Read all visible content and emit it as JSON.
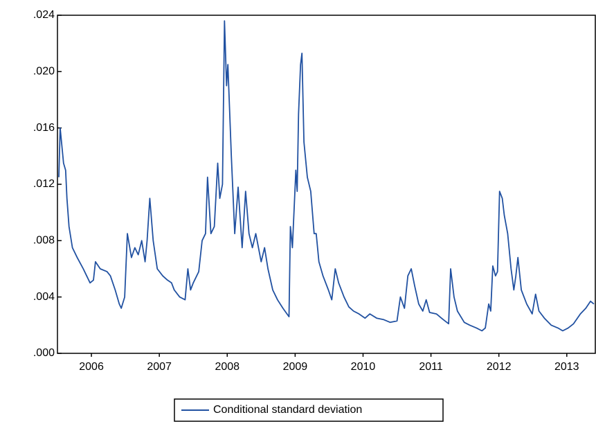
{
  "chart_data": {
    "type": "line",
    "x": [
      2006.02,
      2006.04,
      2006.09,
      2006.12,
      2006.14,
      2006.17,
      2006.22,
      2006.29,
      2006.38,
      2006.43,
      2006.48,
      2006.53,
      2006.56,
      2006.63,
      2006.73,
      2006.78,
      2006.85,
      2006.91,
      2006.94,
      2006.99,
      2007.03,
      2007.09,
      2007.14,
      2007.19,
      2007.24,
      2007.29,
      2007.32,
      2007.36,
      2007.41,
      2007.47,
      2007.55,
      2007.62,
      2007.68,
      2007.72,
      2007.8,
      2007.88,
      2007.92,
      2007.96,
      2008.0,
      2008.08,
      2008.13,
      2008.18,
      2008.21,
      2008.26,
      2008.31,
      2008.36,
      2008.39,
      2008.43,
      2008.46,
      2008.49,
      2008.51,
      2008.56,
      2008.61,
      2008.66,
      2008.72,
      2008.77,
      2008.82,
      2008.87,
      2008.92,
      2009.0,
      2009.05,
      2009.1,
      2009.17,
      2009.24,
      2009.32,
      2009.38,
      2009.41,
      2009.43,
      2009.46,
      2009.51,
      2009.53,
      2009.55,
      2009.58,
      2009.6,
      2009.63,
      2009.68,
      2009.73,
      2009.78,
      2009.81,
      2009.85,
      2009.91,
      2009.99,
      2010.04,
      2010.09,
      2010.14,
      2010.22,
      2010.29,
      2010.36,
      2010.44,
      2010.53,
      2010.6,
      2010.7,
      2010.8,
      2010.9,
      2011.0,
      2011.05,
      2011.11,
      2011.16,
      2011.21,
      2011.26,
      2011.32,
      2011.38,
      2011.43,
      2011.48,
      2011.58,
      2011.68,
      2011.76,
      2011.79,
      2011.84,
      2011.89,
      2011.99,
      2012.07,
      2012.17,
      2012.25,
      2012.3,
      2012.35,
      2012.38,
      2012.41,
      2012.45,
      2012.48,
      2012.51,
      2012.55,
      2012.58,
      2012.63,
      2012.68,
      2012.72,
      2012.75,
      2012.78,
      2012.83,
      2012.91,
      2012.99,
      2013.04,
      2013.09,
      2013.17,
      2013.27,
      2013.37,
      2013.44,
      2013.52,
      2013.6,
      2013.7,
      2013.78,
      2013.85,
      2013.9
    ],
    "series": [
      {
        "name": "Conditional standard deviation",
        "color": "#2151a1",
        "values": [
          0.0125,
          0.016,
          0.0135,
          0.013,
          0.011,
          0.009,
          0.0075,
          0.0068,
          0.006,
          0.0055,
          0.005,
          0.0052,
          0.0065,
          0.006,
          0.0058,
          0.0055,
          0.0045,
          0.0035,
          0.0032,
          0.004,
          0.0085,
          0.0068,
          0.0075,
          0.007,
          0.008,
          0.0065,
          0.008,
          0.011,
          0.008,
          0.006,
          0.0055,
          0.0052,
          0.005,
          0.0045,
          0.004,
          0.0038,
          0.006,
          0.0045,
          0.005,
          0.0058,
          0.008,
          0.0085,
          0.0125,
          0.0085,
          0.009,
          0.0135,
          0.011,
          0.012,
          0.0236,
          0.019,
          0.0205,
          0.014,
          0.0085,
          0.0118,
          0.0075,
          0.0115,
          0.0085,
          0.0075,
          0.0085,
          0.0065,
          0.0075,
          0.006,
          0.0045,
          0.0038,
          0.0032,
          0.0028,
          0.0026,
          0.009,
          0.0075,
          0.013,
          0.0115,
          0.017,
          0.0205,
          0.0213,
          0.015,
          0.0125,
          0.0115,
          0.0085,
          0.0085,
          0.0065,
          0.0055,
          0.0045,
          0.0038,
          0.006,
          0.005,
          0.004,
          0.0033,
          0.003,
          0.0028,
          0.0025,
          0.0028,
          0.0025,
          0.0024,
          0.0022,
          0.0023,
          0.004,
          0.0032,
          0.0055,
          0.006,
          0.0048,
          0.0035,
          0.003,
          0.0038,
          0.0029,
          0.0028,
          0.0024,
          0.0021,
          0.006,
          0.004,
          0.003,
          0.0022,
          0.002,
          0.0018,
          0.0016,
          0.0018,
          0.0035,
          0.003,
          0.0062,
          0.0055,
          0.0058,
          0.0115,
          0.011,
          0.0098,
          0.0085,
          0.006,
          0.0045,
          0.0055,
          0.0068,
          0.0045,
          0.0035,
          0.0028,
          0.0042,
          0.003,
          0.0025,
          0.002,
          0.0018,
          0.0016,
          0.0018,
          0.0021,
          0.0028,
          0.0032,
          0.0037,
          0.0035
        ]
      }
    ],
    "xlim": [
      2006,
      2013.92
    ],
    "xticks": [
      {
        "value": 2006.5,
        "label": "2006"
      },
      {
        "value": 2007.5,
        "label": "2007"
      },
      {
        "value": 2008.5,
        "label": "2008"
      },
      {
        "value": 2009.5,
        "label": "2009"
      },
      {
        "value": 2010.5,
        "label": "2010"
      },
      {
        "value": 2011.5,
        "label": "2011"
      },
      {
        "value": 2012.5,
        "label": "2012"
      },
      {
        "value": 2013.5,
        "label": "2013"
      }
    ],
    "ylim": [
      0,
      0.024
    ],
    "yticks": [
      {
        "value": 0,
        "label": ".000"
      },
      {
        "value": 0.004,
        "label": ".004"
      },
      {
        "value": 0.008,
        "label": ".008"
      },
      {
        "value": 0.012,
        "label": ".012"
      },
      {
        "value": 0.016,
        "label": ".016"
      },
      {
        "value": 0.02,
        "label": ".020"
      },
      {
        "value": 0.024,
        "label": ".024"
      }
    ],
    "grid": false
  }
}
